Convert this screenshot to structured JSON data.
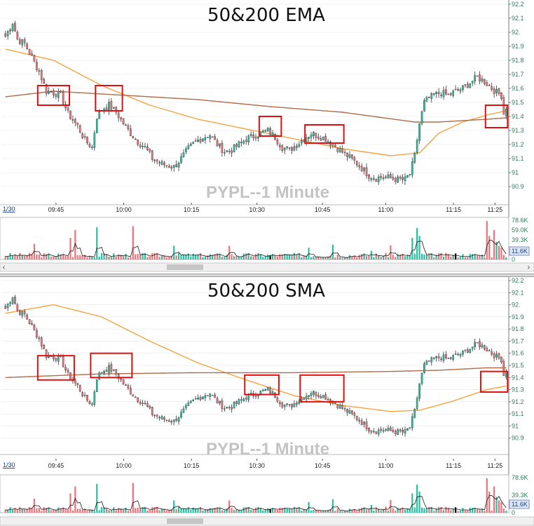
{
  "colors": {
    "up": "#2bbfa4",
    "down": "#e8747c",
    "ema_fast": "#f4a340",
    "ema_slow": "#b06a4a",
    "highlight": "#e01010",
    "grid": "#e6e6e6",
    "axis_text": "#2e7d5b",
    "watermark": "#c4c4c4",
    "vol_line": "#1a1a1a",
    "vol_badge_bg": "#dde8f7",
    "vol_badge_text": "#1a3c8a"
  },
  "chart_data": [
    {
      "type": "candlestick",
      "title": "50&200 EMA",
      "watermark": "PYPL--1 Minute",
      "date_label": "1/30",
      "x_ticks": [
        "09:45",
        "10:00",
        "10:15",
        "10:30",
        "10:45",
        "11:00",
        "11:15",
        "11:25"
      ],
      "y_ticks": [
        "92.2",
        "92.1",
        "92.",
        "91.9",
        "91.8",
        "91.7",
        "91.6",
        "91.5",
        "91.4",
        "91.3",
        "91.2",
        "91.1",
        "91",
        "90.9"
      ],
      "ylim": [
        90.8,
        92.2
      ],
      "y_tick_values": [
        92.2,
        92.1,
        92.0,
        91.9,
        91.8,
        91.7,
        91.6,
        91.5,
        91.4,
        91.3,
        91.2,
        91.1,
        91.0,
        90.9
      ],
      "series": [
        {
          "name": "EMA 50",
          "anchors": [
            [
              0,
              91.88
            ],
            [
              20,
              91.8
            ],
            [
              40,
              91.62
            ],
            [
              60,
              91.48
            ],
            [
              80,
              91.38
            ],
            [
              100,
              91.31
            ],
            [
              120,
              91.24
            ],
            [
              140,
              91.17
            ],
            [
              160,
              91.12
            ],
            [
              172,
              91.14
            ],
            [
              180,
              91.28
            ],
            [
              190,
              91.36
            ],
            [
              200,
              91.41
            ],
            [
              208,
              91.44
            ]
          ]
        },
        {
          "name": "EMA 200",
          "anchors": [
            [
              0,
              91.54
            ],
            [
              20,
              91.58
            ],
            [
              50,
              91.55
            ],
            [
              80,
              91.52
            ],
            [
              110,
              91.47
            ],
            [
              140,
              91.43
            ],
            [
              170,
              91.36
            ],
            [
              180,
              91.36
            ],
            [
              200,
              91.38
            ],
            [
              208,
              91.39
            ]
          ]
        }
      ],
      "volume_axis": {
        "labels": [
          "78.6K",
          "59.0K",
          "39.3K",
          "19.7K",
          "0"
        ],
        "max": 78.6,
        "current_badge": "11.6K"
      },
      "highlights": [
        {
          "from": 14,
          "to": 26,
          "ylow": 91.48,
          "yhigh": 91.62
        },
        {
          "from": 38,
          "to": 48,
          "ylow": 91.44,
          "yhigh": 91.62
        },
        {
          "from": 106,
          "to": 114,
          "ylow": 91.26,
          "yhigh": 91.4
        },
        {
          "from": 125,
          "to": 140,
          "ylow": 91.21,
          "yhigh": 91.34
        },
        {
          "from": 200,
          "to": 208,
          "ylow": 91.32,
          "yhigh": 91.48
        }
      ]
    },
    {
      "type": "candlestick",
      "title": "50&200 SMA",
      "watermark": "PYPL--1 Minute",
      "date_label": "1/30",
      "x_ticks": [
        "09:45",
        "10:00",
        "10:15",
        "10:30",
        "10:45",
        "11:00",
        "11:15",
        "11:25"
      ],
      "y_ticks": [
        "92.2",
        "92.1",
        "92.",
        "91.9",
        "91.8",
        "91.7",
        "91.6",
        "91.5",
        "91.4",
        "91.3",
        "91.2",
        "91.1",
        "91",
        "90.9"
      ],
      "ylim": [
        90.8,
        92.2
      ],
      "y_tick_values": [
        92.2,
        92.1,
        92.0,
        91.9,
        91.8,
        91.7,
        91.6,
        91.5,
        91.4,
        91.3,
        91.2,
        91.1,
        91.0,
        90.9
      ],
      "series": [
        {
          "name": "SMA 50",
          "anchors": [
            [
              0,
              91.93
            ],
            [
              20,
              92.0
            ],
            [
              40,
              91.9
            ],
            [
              60,
              91.7
            ],
            [
              80,
              91.52
            ],
            [
              100,
              91.38
            ],
            [
              120,
              91.25
            ],
            [
              140,
              91.17
            ],
            [
              160,
              91.12
            ],
            [
              172,
              91.13
            ],
            [
              185,
              91.2
            ],
            [
              200,
              91.3
            ],
            [
              208,
              91.33
            ]
          ]
        },
        {
          "name": "SMA 200",
          "anchors": [
            [
              0,
              91.4
            ],
            [
              40,
              91.43
            ],
            [
              80,
              91.44
            ],
            [
              120,
              91.44
            ],
            [
              160,
              91.45
            ],
            [
              180,
              91.46
            ],
            [
              200,
              91.48
            ],
            [
              208,
              91.48
            ]
          ]
        }
      ],
      "volume_axis": {
        "labels": [
          "78.6K",
          "39.3K",
          "0"
        ],
        "max": 78.6,
        "current_badge": "11.6K"
      },
      "highlights": [
        {
          "from": 14,
          "to": 28,
          "ylow": 91.38,
          "yhigh": 91.58
        },
        {
          "from": 36,
          "to": 52,
          "ylow": 91.4,
          "yhigh": 91.6
        },
        {
          "from": 100,
          "to": 113,
          "ylow": 91.26,
          "yhigh": 91.42
        },
        {
          "from": 123,
          "to": 140,
          "ylow": 91.2,
          "yhigh": 91.42
        },
        {
          "from": 198,
          "to": 208,
          "ylow": 91.28,
          "yhigh": 91.45
        }
      ]
    }
  ],
  "price_data": {
    "count": 209,
    "x_ticks_index": [
      25,
      56,
      87,
      117,
      147,
      176,
      207,
      226
    ],
    "anchors": [
      [
        0,
        91.97
      ],
      [
        3,
        92.07
      ],
      [
        5,
        91.95
      ],
      [
        8,
        91.92
      ],
      [
        11,
        91.82
      ],
      [
        14,
        91.72
      ],
      [
        17,
        91.58
      ],
      [
        20,
        91.57
      ],
      [
        23,
        91.55
      ],
      [
        26,
        91.42
      ],
      [
        30,
        91.33
      ],
      [
        33,
        91.23
      ],
      [
        36,
        91.18
      ],
      [
        38,
        91.4
      ],
      [
        40,
        91.45
      ],
      [
        43,
        91.48
      ],
      [
        46,
        91.43
      ],
      [
        49,
        91.35
      ],
      [
        52,
        91.28
      ],
      [
        55,
        91.22
      ],
      [
        58,
        91.18
      ],
      [
        61,
        91.1
      ],
      [
        64,
        91.07
      ],
      [
        67,
        91.05
      ],
      [
        70,
        91.04
      ],
      [
        73,
        91.1
      ],
      [
        76,
        91.17
      ],
      [
        79,
        91.22
      ],
      [
        82,
        91.25
      ],
      [
        85,
        91.27
      ],
      [
        88,
        91.2
      ],
      [
        91,
        91.15
      ],
      [
        94,
        91.16
      ],
      [
        97,
        91.2
      ],
      [
        100,
        91.24
      ],
      [
        103,
        91.26
      ],
      [
        106,
        91.28
      ],
      [
        109,
        91.3
      ],
      [
        112,
        91.25
      ],
      [
        115,
        91.18
      ],
      [
        118,
        91.16
      ],
      [
        121,
        91.2
      ],
      [
        124,
        91.24
      ],
      [
        127,
        91.28
      ],
      [
        130,
        91.26
      ],
      [
        133,
        91.24
      ],
      [
        136,
        91.2
      ],
      [
        139,
        91.16
      ],
      [
        142,
        91.12
      ],
      [
        145,
        91.08
      ],
      [
        148,
        91.03
      ],
      [
        151,
        90.98
      ],
      [
        154,
        90.96
      ],
      [
        157,
        90.97
      ],
      [
        160,
        90.96
      ],
      [
        163,
        90.95
      ],
      [
        166,
        90.95
      ],
      [
        168,
        90.99
      ],
      [
        170,
        91.12
      ],
      [
        172,
        91.35
      ],
      [
        174,
        91.5
      ],
      [
        176,
        91.53
      ],
      [
        178,
        91.55
      ],
      [
        181,
        91.57
      ],
      [
        184,
        91.55
      ],
      [
        187,
        91.58
      ],
      [
        190,
        91.6
      ],
      [
        193,
        91.64
      ],
      [
        196,
        91.68
      ],
      [
        199,
        91.65
      ],
      [
        202,
        91.6
      ],
      [
        204,
        91.57
      ],
      [
        206,
        91.55
      ],
      [
        207,
        91.42
      ],
      [
        208,
        91.47
      ]
    ]
  },
  "volume_data": {
    "spikes": [
      [
        12,
        0.4
      ],
      [
        27,
        0.55
      ],
      [
        29,
        0.75
      ],
      [
        38,
        0.82
      ],
      [
        53,
        0.85
      ],
      [
        70,
        0.35
      ],
      [
        93,
        0.35
      ],
      [
        126,
        0.3
      ],
      [
        136,
        0.38
      ],
      [
        152,
        0.22
      ],
      [
        160,
        0.36
      ],
      [
        169,
        0.55
      ],
      [
        171,
        0.8
      ],
      [
        172,
        0.6
      ],
      [
        200,
        0.98
      ],
      [
        201,
        0.6
      ],
      [
        203,
        0.75
      ],
      [
        204,
        0.45
      ],
      [
        205,
        0.35
      ],
      [
        206,
        0.3
      ]
    ],
    "black_at": [
      110,
      187
    ]
  }
}
